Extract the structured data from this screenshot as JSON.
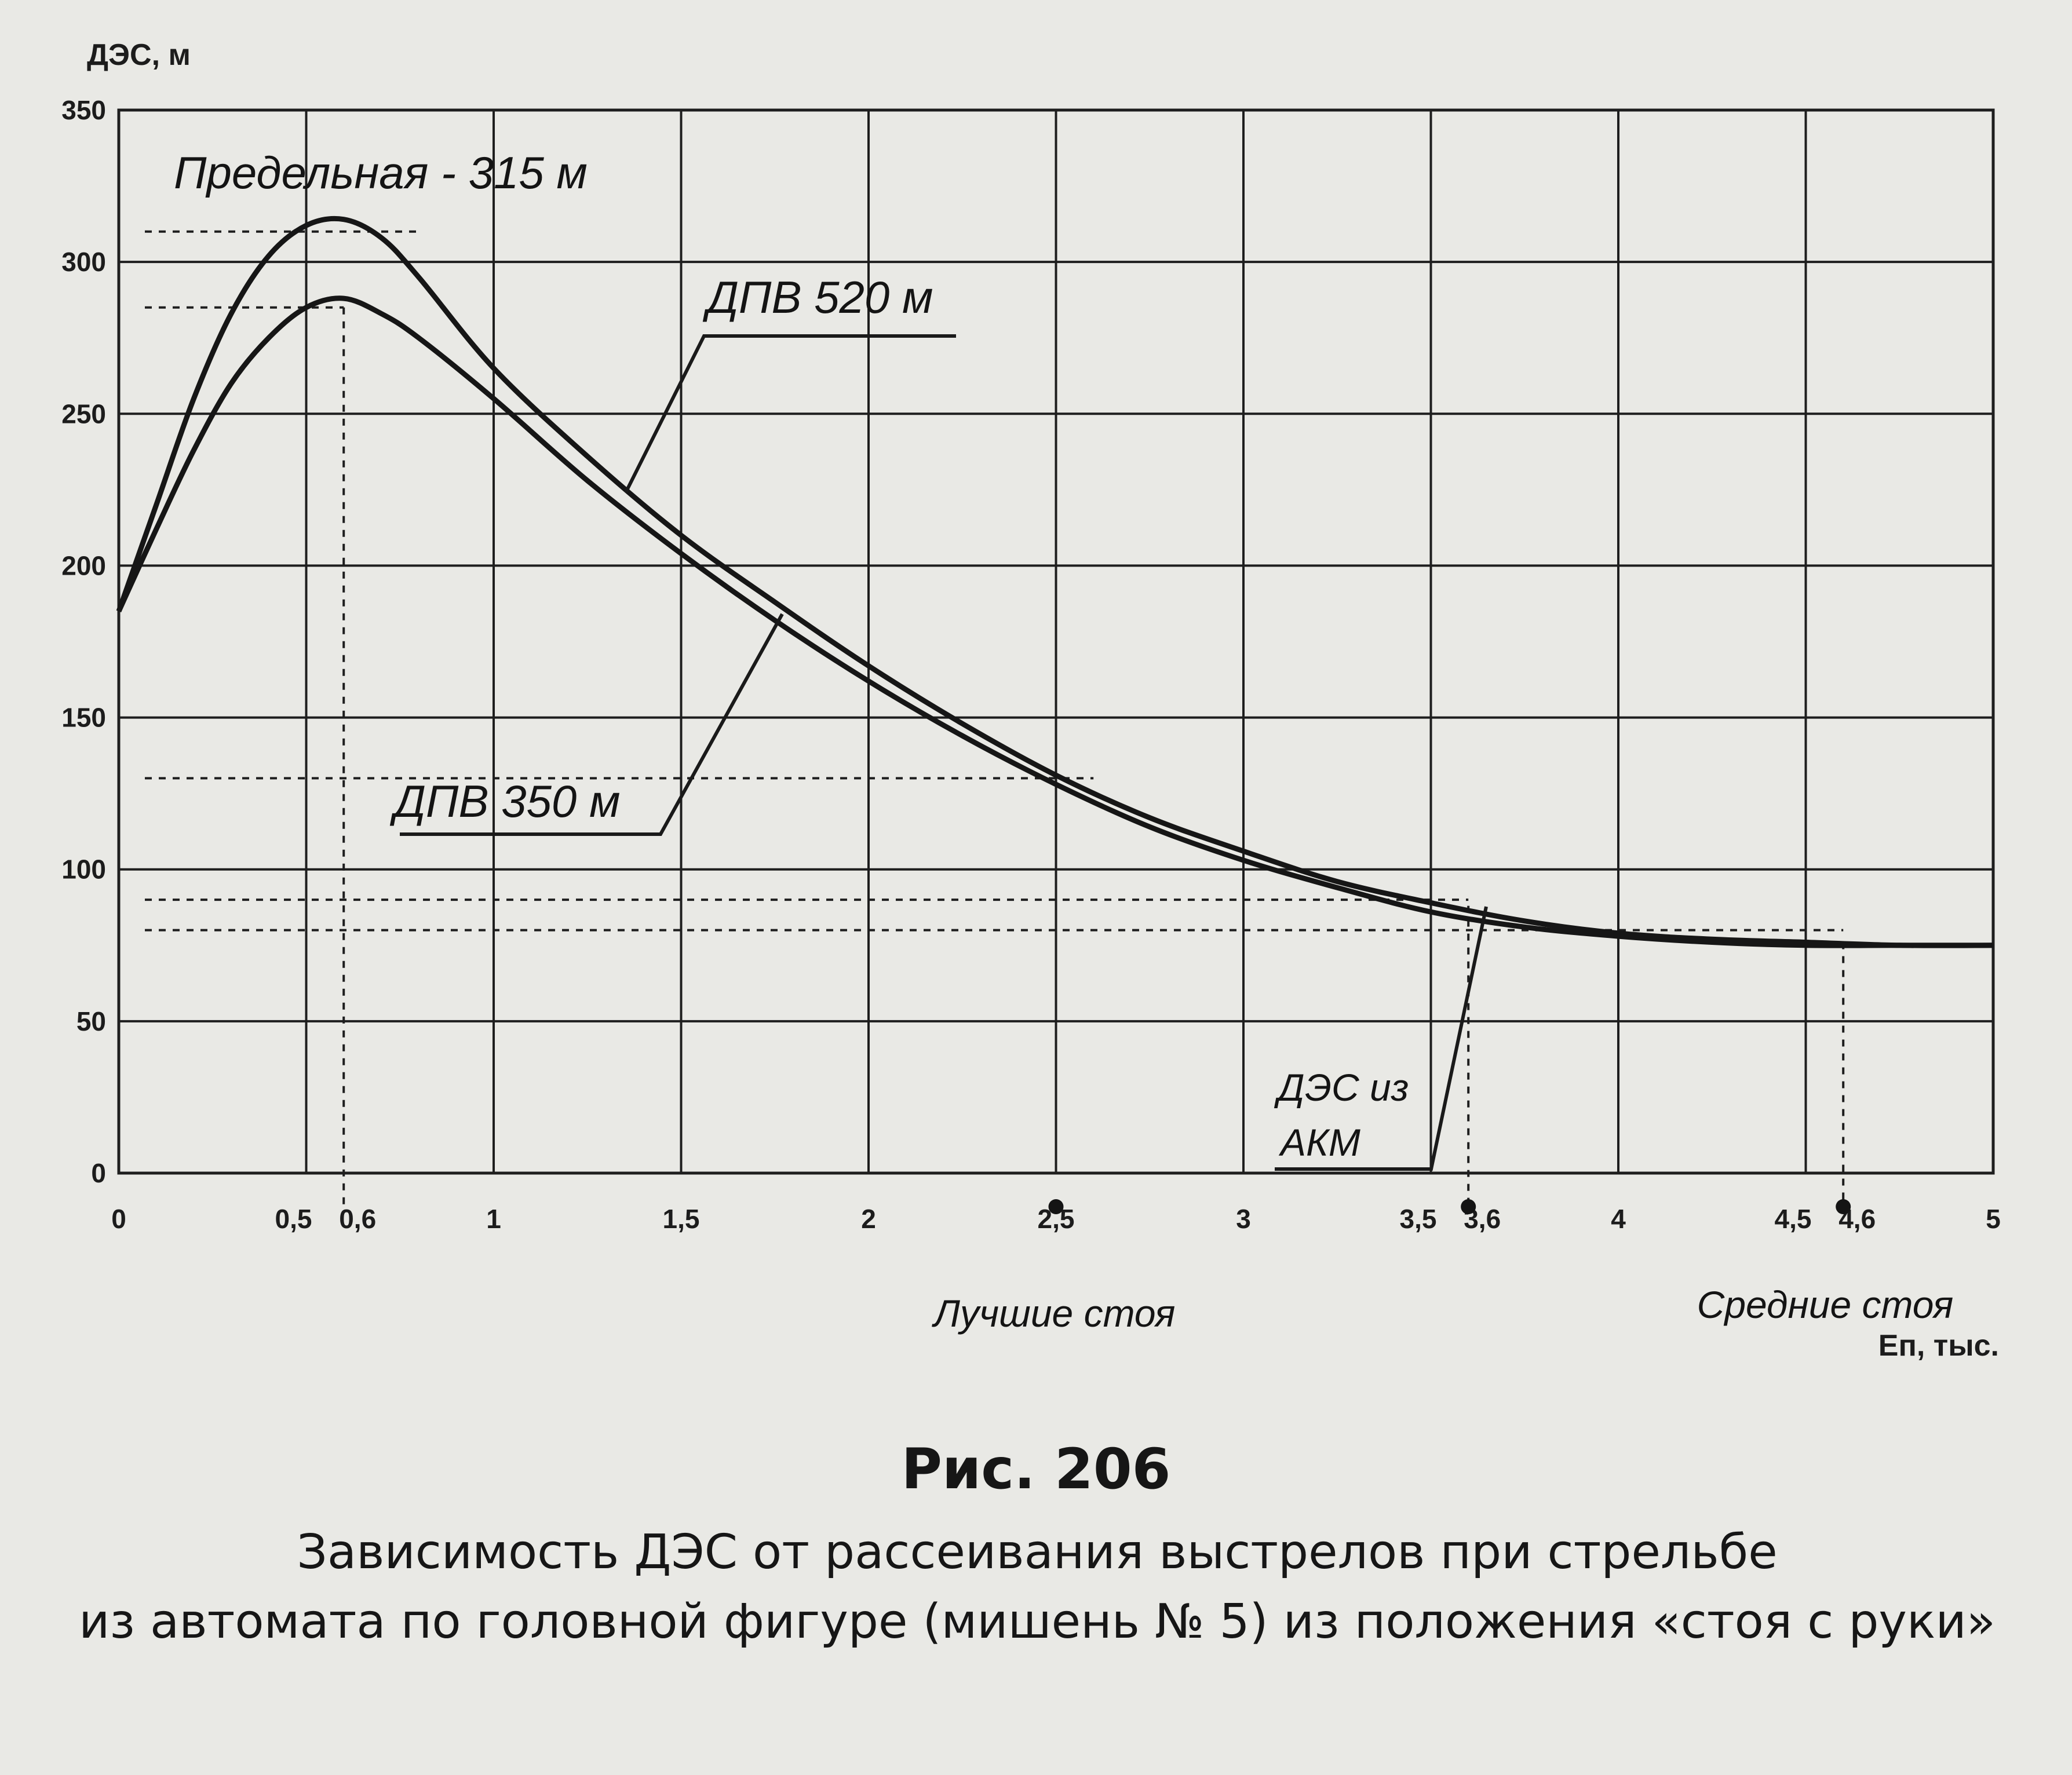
{
  "chart_data": {
    "type": "line",
    "ylabel": "ДЭС, м",
    "xlabel": "Еп, тыс.",
    "xlim": [
      0,
      5
    ],
    "ylim": [
      0,
      350
    ],
    "x_ticks": [
      {
        "value": 0,
        "label": "0"
      },
      {
        "value": 0.5,
        "label": "0,5"
      },
      {
        "value": 0.6,
        "label": "0,6"
      },
      {
        "value": 1,
        "label": "1"
      },
      {
        "value": 1.5,
        "label": "1,5"
      },
      {
        "value": 2,
        "label": "2"
      },
      {
        "value": 2.5,
        "label": "2,5"
      },
      {
        "value": 3,
        "label": "3"
      },
      {
        "value": 3.5,
        "label": "3,5"
      },
      {
        "value": 3.6,
        "label": "3,6"
      },
      {
        "value": 4,
        "label": "4"
      },
      {
        "value": 4.5,
        "label": "4,5"
      },
      {
        "value": 4.6,
        "label": "4,6"
      },
      {
        "value": 5,
        "label": "5"
      }
    ],
    "y_ticks": [
      {
        "value": 0,
        "label": "0"
      },
      {
        "value": 50,
        "label": "50"
      },
      {
        "value": 100,
        "label": "100"
      },
      {
        "value": 150,
        "label": "150"
      },
      {
        "value": 200,
        "label": "200"
      },
      {
        "value": 250,
        "label": "250"
      },
      {
        "value": 300,
        "label": "300"
      },
      {
        "value": 350,
        "label": "350"
      }
    ],
    "grid": true,
    "series": [
      {
        "name": "ДПВ 520 м",
        "x": [
          0,
          0.1,
          0.2,
          0.3,
          0.4,
          0.5,
          0.6,
          0.7,
          0.8,
          1.0,
          1.25,
          1.5,
          1.75,
          2.0,
          2.25,
          2.5,
          2.75,
          3.0,
          3.25,
          3.5,
          3.75,
          4.0,
          4.25,
          4.5,
          4.75,
          5.0
        ],
        "y": [
          185,
          220,
          255,
          283,
          302,
          312,
          314,
          308,
          295,
          265,
          236,
          210,
          188,
          167,
          148,
          131,
          117,
          106,
          96,
          89,
          83,
          79,
          77,
          76,
          75,
          75
        ]
      },
      {
        "name": "ДПВ 350 м",
        "x": [
          0,
          0.1,
          0.2,
          0.3,
          0.4,
          0.5,
          0.6,
          0.7,
          0.8,
          1.0,
          1.25,
          1.5,
          1.75,
          2.0,
          2.25,
          2.5,
          2.75,
          3.0,
          3.25,
          3.5,
          3.75,
          4.0,
          4.25,
          4.5,
          4.75,
          5.0
        ],
        "y": [
          185,
          212,
          238,
          260,
          275,
          285,
          288,
          283,
          275,
          255,
          228,
          204,
          182,
          162,
          144,
          128,
          114,
          103,
          94,
          86,
          81,
          78,
          76,
          75,
          75,
          75
        ]
      }
    ],
    "reference_lines_y": [
      310,
      285,
      130,
      90,
      80
    ],
    "reference_lines_x": [
      0.6,
      3.6,
      4.6
    ],
    "marked_points_x": [
      2.5,
      3.6,
      4.6
    ]
  },
  "annotations": {
    "limit": "Предельная - 315 м",
    "dpv520": "ДПВ 520 м",
    "dpv350": "ДПВ 350 м",
    "des_akm_1": "ДЭС из",
    "des_akm_2": "АКМ",
    "best": "Лучшие стоя",
    "avg": "Средние стоя"
  },
  "figure": {
    "number": "Рис.  206",
    "caption_line1": "Зависимость ДЭС от рассеивания выстрелов при стрельбе",
    "caption_line2": "из автомата по головной фигуре (мишень № 5) из положения «стоя с руки»"
  }
}
